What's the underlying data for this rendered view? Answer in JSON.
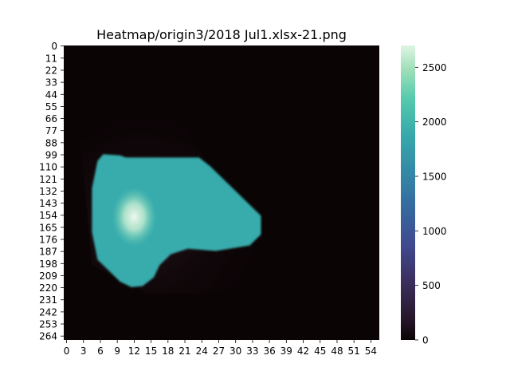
{
  "chart_data": {
    "type": "heatmap",
    "title": "Heatmap/origin3/2018 Jul1.xlsx-21.png",
    "xlabel": "",
    "ylabel": "",
    "colormap": "mako",
    "x_range": [
      0,
      56
    ],
    "y_range": [
      0,
      268
    ],
    "x_tick_labels": [
      "0",
      "3",
      "6",
      "9",
      "12",
      "15",
      "18",
      "21",
      "24",
      "27",
      "30",
      "33",
      "36",
      "39",
      "42",
      "45",
      "48",
      "51",
      "54"
    ],
    "y_tick_labels": [
      "0",
      "11",
      "22",
      "33",
      "44",
      "55",
      "66",
      "77",
      "88",
      "99",
      "110",
      "121",
      "132",
      "143",
      "154",
      "165",
      "176",
      "187",
      "198",
      "209",
      "220",
      "231",
      "242",
      "253",
      "264"
    ],
    "colorbar": {
      "range": [
        0,
        2700
      ],
      "tick_labels": [
        "0",
        "500",
        "1000",
        "1500",
        "2000",
        "2500"
      ],
      "ticks": [
        0,
        500,
        1000,
        1500,
        2000,
        2500
      ]
    },
    "background_value": 20,
    "regions": [
      {
        "name": "faint-triangle",
        "value": 60,
        "polygon_data": [
          [
            3,
            88
          ],
          [
            10,
            66
          ],
          [
            17,
            44
          ],
          [
            40,
            208
          ],
          [
            30,
            225
          ],
          [
            15,
            226
          ],
          [
            5,
            200
          ]
        ]
      },
      {
        "name": "main-blob",
        "value": 1900,
        "polygon_data": [
          [
            6,
            105
          ],
          [
            7,
            99
          ],
          [
            10,
            100
          ],
          [
            11,
            102
          ],
          [
            24,
            102
          ],
          [
            26,
            110
          ],
          [
            29,
            125
          ],
          [
            32,
            140
          ],
          [
            35,
            155
          ],
          [
            35,
            172
          ],
          [
            33,
            182
          ],
          [
            27,
            187
          ],
          [
            22,
            185
          ],
          [
            19,
            190
          ],
          [
            17,
            200
          ],
          [
            16,
            211
          ],
          [
            14,
            219
          ],
          [
            12,
            220
          ],
          [
            10,
            215
          ],
          [
            8,
            205
          ],
          [
            6,
            195
          ],
          [
            5,
            170
          ],
          [
            5,
            130
          ]
        ]
      },
      {
        "name": "hot-core",
        "value": 2650,
        "center": [
          12.5,
          156
        ],
        "radius": [
          4,
          27
        ]
      }
    ]
  }
}
